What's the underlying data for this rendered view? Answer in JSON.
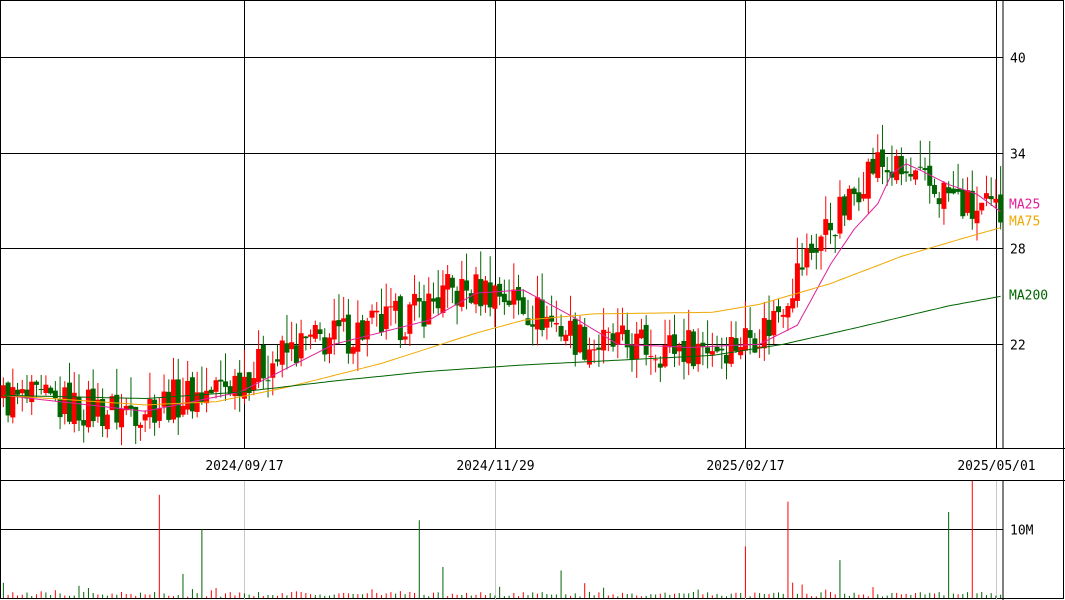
{
  "chart_data": [
    {
      "type": "candlestick",
      "x_tick_labels": [
        "2024/09/17",
        "2024/11/29",
        "2025/02/17",
        "2025/05/01"
      ],
      "y_tick_labels": [
        "22",
        "28",
        "34",
        "40"
      ],
      "ylim": [
        15.5,
        43.5
      ],
      "grid": true,
      "colors": {
        "up": "#ff0000",
        "down": "#006400",
        "ma25": "#e0209a",
        "ma75": "#f0a800",
        "ma200": "#006400",
        "grid": "#000000"
      },
      "legend": [
        "MA25",
        "MA75",
        "MA200"
      ],
      "series": [
        {
          "name": "MA25",
          "anchors": [
            [
              0,
              18.8
            ],
            [
              30,
              17.8
            ],
            [
              50,
              19.0
            ],
            [
              70,
              22.0
            ],
            [
              90,
              23.5
            ],
            [
              100,
              25.2
            ],
            [
              110,
              25.4
            ],
            [
              120,
              23.8
            ],
            [
              130,
              22.0
            ],
            [
              145,
              21.8
            ],
            [
              160,
              22.0
            ],
            [
              168,
              23.2
            ],
            [
              175,
              27.0
            ],
            [
              180,
              29.2
            ],
            [
              185,
              30.8
            ],
            [
              188,
              32.7
            ],
            [
              191,
              33.3
            ],
            [
              194,
              32.9
            ],
            [
              200,
              32.0
            ],
            [
              206,
              31.4
            ],
            [
              211,
              30.3
            ]
          ]
        },
        {
          "name": "MA75",
          "anchors": [
            [
              0,
              18.8
            ],
            [
              30,
              18.2
            ],
            [
              45,
              18.4
            ],
            [
              60,
              19.3
            ],
            [
              80,
              20.8
            ],
            [
              100,
              22.7
            ],
            [
              110,
              23.5
            ],
            [
              125,
              23.9
            ],
            [
              150,
              24.0
            ],
            [
              160,
              24.5
            ],
            [
              175,
              25.8
            ],
            [
              190,
              27.5
            ],
            [
              205,
              28.8
            ],
            [
              211,
              29.3
            ]
          ]
        },
        {
          "name": "MA200",
          "anchors": [
            [
              0,
              18.8
            ],
            [
              30,
              18.6
            ],
            [
              50,
              19.0
            ],
            [
              70,
              19.7
            ],
            [
              90,
              20.3
            ],
            [
              110,
              20.7
            ],
            [
              130,
              21.0
            ],
            [
              150,
              21.3
            ],
            [
              165,
              22.0
            ],
            [
              180,
              23.0
            ],
            [
              200,
              24.4
            ],
            [
              211,
              25.0
            ]
          ]
        }
      ]
    },
    {
      "type": "bar",
      "title": "",
      "y_tick_labels": [
        "10M"
      ],
      "ylim": [
        0,
        17
      ],
      "peaks": [
        [
          33,
          15.0
        ],
        [
          38,
          3.5
        ],
        [
          42,
          10.0
        ],
        [
          88,
          11.3
        ],
        [
          93,
          4.5
        ],
        [
          118,
          4.0
        ],
        [
          157,
          7.5
        ],
        [
          166,
          14.0
        ],
        [
          177,
          5.5
        ],
        [
          200,
          12.5
        ],
        [
          205,
          17.0
        ]
      ]
    }
  ]
}
